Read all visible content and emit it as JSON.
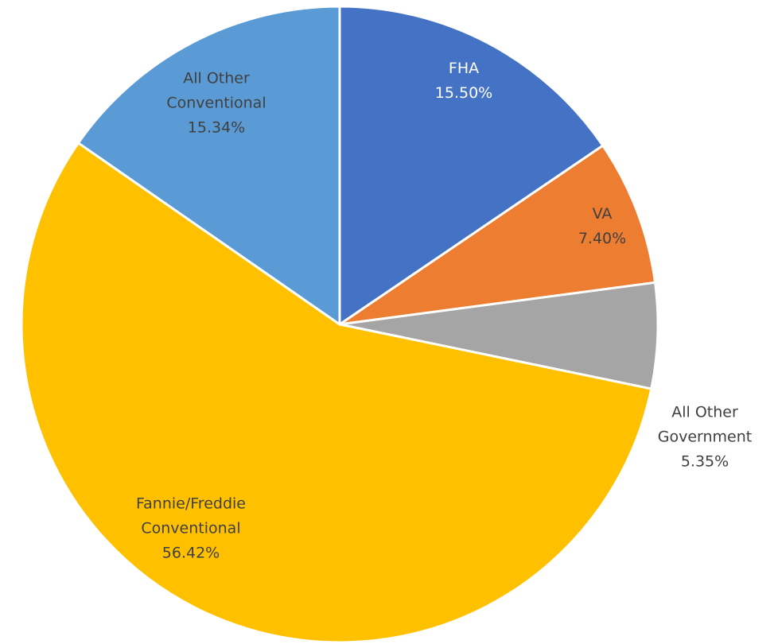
{
  "chart_data": {
    "type": "pie",
    "categories": [
      "FHA",
      "VA",
      "All Other Government",
      "Fannie/Freddie Conventional",
      "All Other Conventional"
    ],
    "values": [
      15.5,
      7.4,
      5.35,
      56.42,
      15.34
    ],
    "value_labels": [
      "15.50%",
      "7.40%",
      "5.35%",
      "56.42%",
      "15.34%"
    ],
    "colors": [
      "#4472c4",
      "#ed7d31",
      "#a5a5a5",
      "#ffc000",
      "#5b9bd5"
    ]
  }
}
